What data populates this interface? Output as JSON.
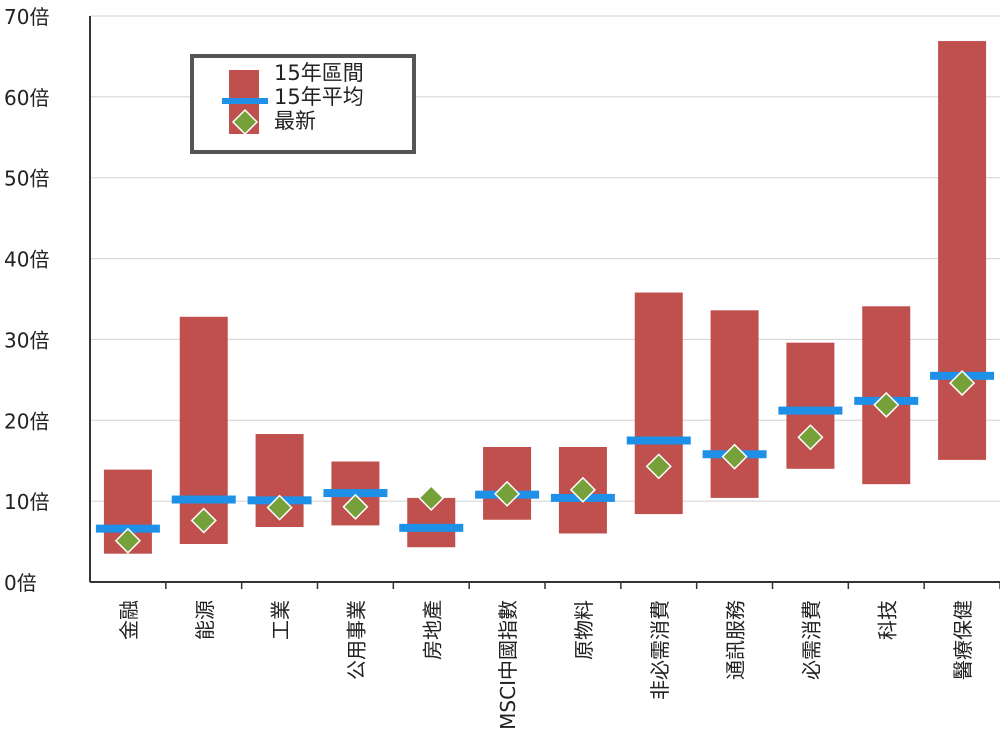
{
  "chart_data": {
    "type": "range-bar",
    "categories": [
      "金融",
      "能源",
      "工業",
      "公用事業",
      "房地產",
      "MSCI中國指數",
      "原物料",
      "非必需消費",
      "通訊服務",
      "必需消費",
      "科技",
      "醫療保健"
    ],
    "series": [
      {
        "name": "15年區間",
        "kind": "range",
        "low": [
          3.5,
          4.7,
          6.8,
          7.0,
          4.3,
          7.7,
          6.0,
          8.4,
          10.4,
          14.0,
          12.1,
          15.1
        ],
        "high": [
          13.9,
          32.8,
          18.3,
          14.9,
          10.4,
          16.7,
          16.7,
          35.8,
          33.6,
          29.6,
          34.1,
          66.9
        ]
      },
      {
        "name": "15年平均",
        "kind": "bar-marker",
        "values": [
          6.6,
          10.2,
          10.1,
          11.0,
          6.7,
          10.8,
          10.4,
          17.5,
          15.8,
          21.2,
          22.4,
          25.5
        ]
      },
      {
        "name": "最新",
        "kind": "diamond",
        "values": [
          5.1,
          7.6,
          9.2,
          9.3,
          10.4,
          10.9,
          11.4,
          14.3,
          15.5,
          17.9,
          21.9,
          24.6
        ]
      }
    ],
    "y_ticks": [
      "0倍",
      "10倍",
      "20倍",
      "30倍",
      "40倍",
      "50倍",
      "60倍",
      "70倍"
    ],
    "ylim": [
      0,
      70
    ],
    "grid": true,
    "legend_position": "top-left",
    "colors": {
      "range": "#c0504d",
      "average": "#1e90e8",
      "latest": "#76a13a",
      "grid": "#d0d0d0",
      "axis": "#333333",
      "legend_border": "#555555"
    }
  }
}
